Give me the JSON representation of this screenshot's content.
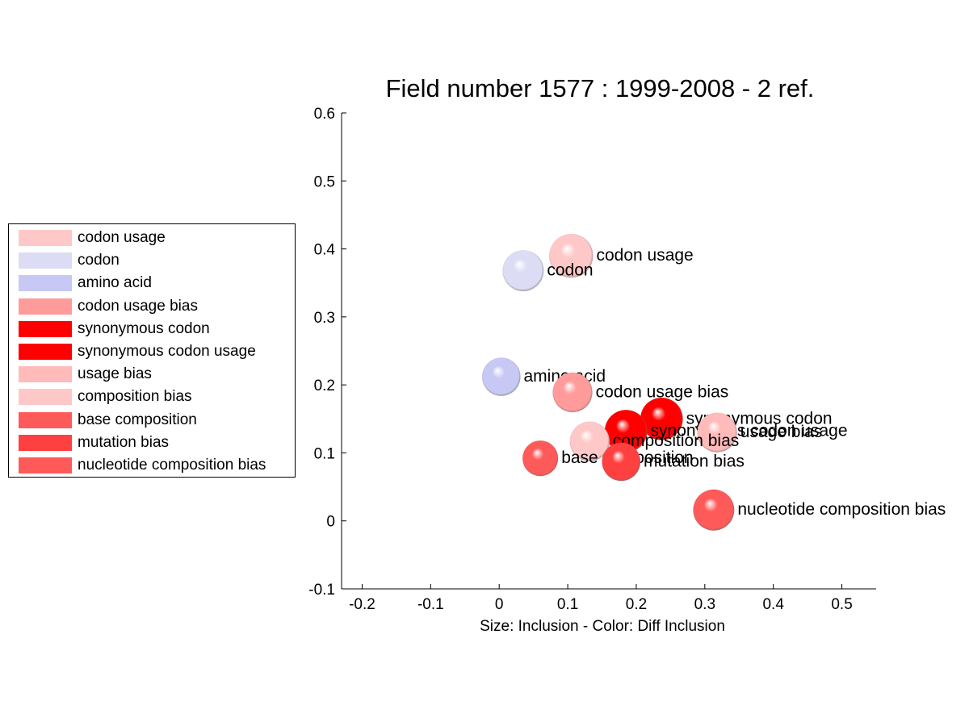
{
  "chart_data": {
    "type": "scatter",
    "title": "Field number 1577 : 1999-2008  - 2 ref.",
    "xlabel": "Size: Inclusion - Color: Diff Inclusion",
    "ylabel": "",
    "xlim": [
      -0.23,
      0.55
    ],
    "ylim": [
      -0.1,
      0.6
    ],
    "x_ticks": [
      "-0.2",
      "-0.1",
      "0",
      "0.1",
      "0.2",
      "0.3",
      "0.4",
      "0.5"
    ],
    "x_tick_values": [
      -0.2,
      -0.1,
      0,
      0.1,
      0.2,
      0.3,
      0.4,
      0.5
    ],
    "y_ticks": [
      "-0.1",
      "0",
      "0.1",
      "0.2",
      "0.3",
      "0.4",
      "0.5",
      "0.6"
    ],
    "y_tick_values": [
      -0.1,
      0,
      0.1,
      0.2,
      0.3,
      0.4,
      0.5,
      0.6
    ],
    "grid": false,
    "legend_placement": "outside-left",
    "points": [
      {
        "label": "codon usage",
        "x": 0.105,
        "y": 0.39,
        "size": 0.032,
        "color": "#ffc8c8"
      },
      {
        "label": "codon",
        "x": 0.035,
        "y": 0.368,
        "size": 0.03,
        "color": "#dcdcf5"
      },
      {
        "label": "amino acid",
        "x": 0.003,
        "y": 0.212,
        "size": 0.028,
        "color": "#c8c8f5"
      },
      {
        "label": "codon usage bias",
        "x": 0.107,
        "y": 0.189,
        "size": 0.029,
        "color": "#ff9b9b"
      },
      {
        "label": "synonymous codon",
        "x": 0.237,
        "y": 0.15,
        "size": 0.031,
        "color": "#ff0000"
      },
      {
        "label": "synonymous codon usage",
        "x": 0.185,
        "y": 0.132,
        "size": 0.031,
        "color": "#ff0000"
      },
      {
        "label": "usage bias",
        "x": 0.318,
        "y": 0.13,
        "size": 0.029,
        "color": "#ffbaba"
      },
      {
        "label": "composition bias",
        "x": 0.132,
        "y": 0.117,
        "size": 0.029,
        "color": "#ffc8c8"
      },
      {
        "label": "base composition",
        "x": 0.06,
        "y": 0.092,
        "size": 0.026,
        "color": "#ff5a5a"
      },
      {
        "label": "mutation bias",
        "x": 0.178,
        "y": 0.087,
        "size": 0.028,
        "color": "#ff4040"
      },
      {
        "label": "nucleotide composition bias",
        "x": 0.313,
        "y": 0.016,
        "size": 0.03,
        "color": "#ff5a5a"
      }
    ]
  },
  "legend": {
    "items": [
      {
        "label": "codon usage",
        "color": "#ffc8c8"
      },
      {
        "label": "codon",
        "color": "#dcdcf5"
      },
      {
        "label": "amino acid",
        "color": "#c8c8f5"
      },
      {
        "label": "codon usage bias",
        "color": "#ff9b9b"
      },
      {
        "label": "synonymous codon",
        "color": "#ff0000"
      },
      {
        "label": "synonymous codon usage",
        "color": "#ff0000"
      },
      {
        "label": "usage bias",
        "color": "#ffbaba"
      },
      {
        "label": "composition bias",
        "color": "#ffc8c8"
      },
      {
        "label": "base composition",
        "color": "#ff5a5a"
      },
      {
        "label": "mutation bias",
        "color": "#ff4040"
      },
      {
        "label": "nucleotide composition bias",
        "color": "#ff5a5a"
      }
    ]
  }
}
